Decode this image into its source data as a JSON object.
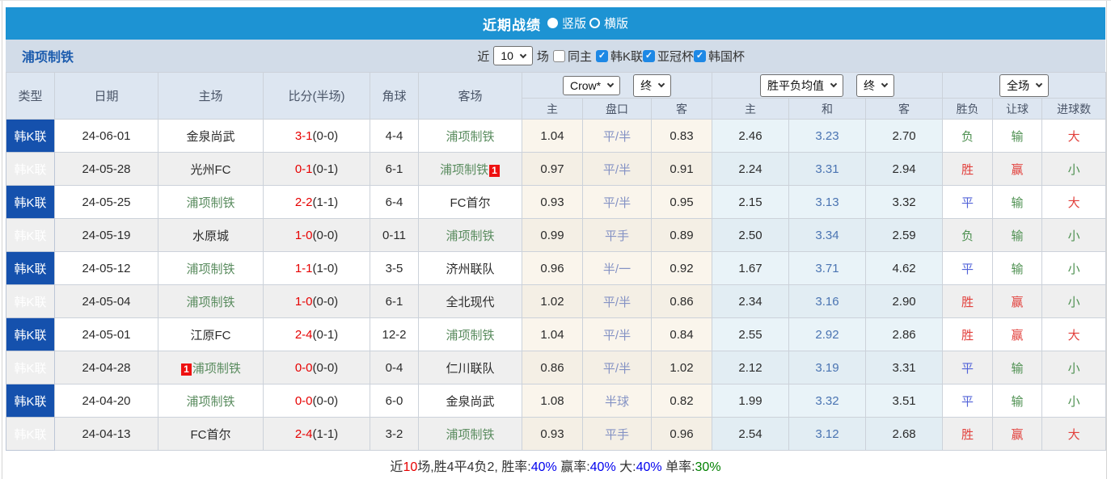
{
  "header": {
    "title": "近期战绩",
    "radios": [
      {
        "label": "竖版",
        "selected": true
      },
      {
        "label": "横版",
        "selected": false
      }
    ]
  },
  "filter_bar": {
    "team_name": "浦项制铁",
    "recent_label": "近",
    "recent_value": "10",
    "matches_label": "场",
    "same_home": {
      "label": "同主",
      "checked": false
    },
    "leagues": [
      {
        "label": "韩K联",
        "checked": true
      },
      {
        "label": "亚冠杯",
        "checked": true
      },
      {
        "label": "韩国杯",
        "checked": true
      }
    ]
  },
  "table": {
    "left_headers": [
      "类型",
      "日期",
      "主场",
      "比分(半场)",
      "角球",
      "客场"
    ],
    "handicap_group": {
      "provider": "Crow*",
      "time": "终",
      "sub": [
        "主",
        "盘口",
        "客"
      ]
    },
    "europe_group": {
      "provider": "胜平负均值",
      "time": "终",
      "sub": [
        "主",
        "和",
        "客"
      ]
    },
    "result_group": {
      "scope": "全场",
      "sub": [
        "胜负",
        "让球",
        "进球数"
      ]
    },
    "rows": [
      {
        "type": "韩K联",
        "date": "24-06-01",
        "home": "金泉尚武",
        "home_subject": false,
        "home_badge": null,
        "score": "3-1",
        "half": "(0-0)",
        "corner": "4-4",
        "away": "浦项制铁",
        "away_subject": true,
        "away_badge": null,
        "h_home": "1.04",
        "line": "平/半",
        "h_away": "0.83",
        "e_home": "2.46",
        "e_draw": "3.23",
        "e_away": "2.70",
        "result": "负",
        "let_result": "输",
        "goals": "大"
      },
      {
        "type": "韩K联",
        "date": "24-05-28",
        "home": "光州FC",
        "home_subject": false,
        "home_badge": null,
        "score": "0-1",
        "half": "(0-1)",
        "corner": "6-1",
        "away": "浦项制铁",
        "away_subject": true,
        "away_badge": "1",
        "h_home": "0.97",
        "line": "平/半",
        "h_away": "0.91",
        "e_home": "2.24",
        "e_draw": "3.31",
        "e_away": "2.94",
        "result": "胜",
        "let_result": "赢",
        "goals": "小"
      },
      {
        "type": "韩K联",
        "date": "24-05-25",
        "home": "浦项制铁",
        "home_subject": true,
        "home_badge": null,
        "score": "2-2",
        "half": "(1-1)",
        "corner": "6-4",
        "away": "FC首尔",
        "away_subject": false,
        "away_badge": null,
        "h_home": "0.93",
        "line": "平/半",
        "h_away": "0.95",
        "e_home": "2.15",
        "e_draw": "3.13",
        "e_away": "3.32",
        "result": "平",
        "let_result": "输",
        "goals": "大"
      },
      {
        "type": "韩K联",
        "date": "24-05-19",
        "home": "水原城",
        "home_subject": false,
        "home_badge": null,
        "score": "1-0",
        "half": "(0-0)",
        "corner": "0-11",
        "away": "浦项制铁",
        "away_subject": true,
        "away_badge": null,
        "h_home": "0.99",
        "line": "平手",
        "h_away": "0.89",
        "e_home": "2.50",
        "e_draw": "3.34",
        "e_away": "2.59",
        "result": "负",
        "let_result": "输",
        "goals": "小"
      },
      {
        "type": "韩K联",
        "date": "24-05-12",
        "home": "浦项制铁",
        "home_subject": true,
        "home_badge": null,
        "score": "1-1",
        "half": "(1-0)",
        "corner": "3-5",
        "away": "济州联队",
        "away_subject": false,
        "away_badge": null,
        "h_home": "0.96",
        "line": "半/一",
        "h_away": "0.92",
        "e_home": "1.67",
        "e_draw": "3.71",
        "e_away": "4.62",
        "result": "平",
        "let_result": "输",
        "goals": "小"
      },
      {
        "type": "韩K联",
        "date": "24-05-04",
        "home": "浦项制铁",
        "home_subject": true,
        "home_badge": null,
        "score": "1-0",
        "half": "(0-0)",
        "corner": "6-1",
        "away": "全北现代",
        "away_subject": false,
        "away_badge": null,
        "h_home": "1.02",
        "line": "平/半",
        "h_away": "0.86",
        "e_home": "2.34",
        "e_draw": "3.16",
        "e_away": "2.90",
        "result": "胜",
        "let_result": "赢",
        "goals": "小"
      },
      {
        "type": "韩K联",
        "date": "24-05-01",
        "home": "江原FC",
        "home_subject": false,
        "home_badge": null,
        "score": "2-4",
        "half": "(0-1)",
        "corner": "12-2",
        "away": "浦项制铁",
        "away_subject": true,
        "away_badge": null,
        "h_home": "1.04",
        "line": "平/半",
        "h_away": "0.84",
        "e_home": "2.55",
        "e_draw": "2.92",
        "e_away": "2.86",
        "result": "胜",
        "let_result": "赢",
        "goals": "大"
      },
      {
        "type": "韩K联",
        "date": "24-04-28",
        "home": "浦项制铁",
        "home_subject": true,
        "home_badge": "1",
        "score": "0-0",
        "half": "(0-0)",
        "corner": "0-4",
        "away": "仁川联队",
        "away_subject": false,
        "away_badge": null,
        "h_home": "0.86",
        "line": "平/半",
        "h_away": "1.02",
        "e_home": "2.12",
        "e_draw": "3.19",
        "e_away": "3.31",
        "result": "平",
        "let_result": "输",
        "goals": "小"
      },
      {
        "type": "韩K联",
        "date": "24-04-20",
        "home": "浦项制铁",
        "home_subject": true,
        "home_badge": null,
        "score": "0-0",
        "half": "(0-0)",
        "corner": "6-0",
        "away": "金泉尚武",
        "away_subject": false,
        "away_badge": null,
        "h_home": "1.08",
        "line": "半球",
        "h_away": "0.82",
        "e_home": "1.99",
        "e_draw": "3.32",
        "e_away": "3.51",
        "result": "平",
        "let_result": "输",
        "goals": "小"
      },
      {
        "type": "韩K联",
        "date": "24-04-13",
        "home": "FC首尔",
        "home_subject": false,
        "home_badge": null,
        "score": "2-4",
        "half": "(1-1)",
        "corner": "3-2",
        "away": "浦项制铁",
        "away_subject": true,
        "away_badge": null,
        "h_home": "0.93",
        "line": "平手",
        "h_away": "0.96",
        "e_home": "2.54",
        "e_draw": "3.12",
        "e_away": "2.68",
        "result": "胜",
        "let_result": "赢",
        "goals": "大"
      }
    ]
  },
  "summary": {
    "segments": [
      {
        "text": "近",
        "color": "#333333"
      },
      {
        "text": "10",
        "color": "#e60000"
      },
      {
        "text": "场,胜4平4负2, 胜率:",
        "color": "#333333"
      },
      {
        "text": "40%",
        "color": "#0000ee"
      },
      {
        "text": " 赢率:",
        "color": "#333333"
      },
      {
        "text": "40%",
        "color": "#0000ee"
      },
      {
        "text": " 大:",
        "color": "#333333"
      },
      {
        "text": "40%",
        "color": "#0000ee"
      },
      {
        "text": " 单率:",
        "color": "#333333"
      },
      {
        "text": "30%",
        "color": "#008000"
      }
    ]
  },
  "colors": {
    "top_bar": "#1d93d3",
    "type_cell": "#1551ad",
    "subject_team": "#5a8c5f",
    "opponent_team": "#2b2b2b",
    "score_red": "#e60000",
    "handicap_text": "#8492c4",
    "euro_draw": "#4a74b2",
    "win_red": "#e2403c",
    "draw_blue": "#5263d8",
    "lose_green": "#4f9152",
    "badge_bg": "#ee1111",
    "checkbox_blue": "#1d88e5"
  }
}
